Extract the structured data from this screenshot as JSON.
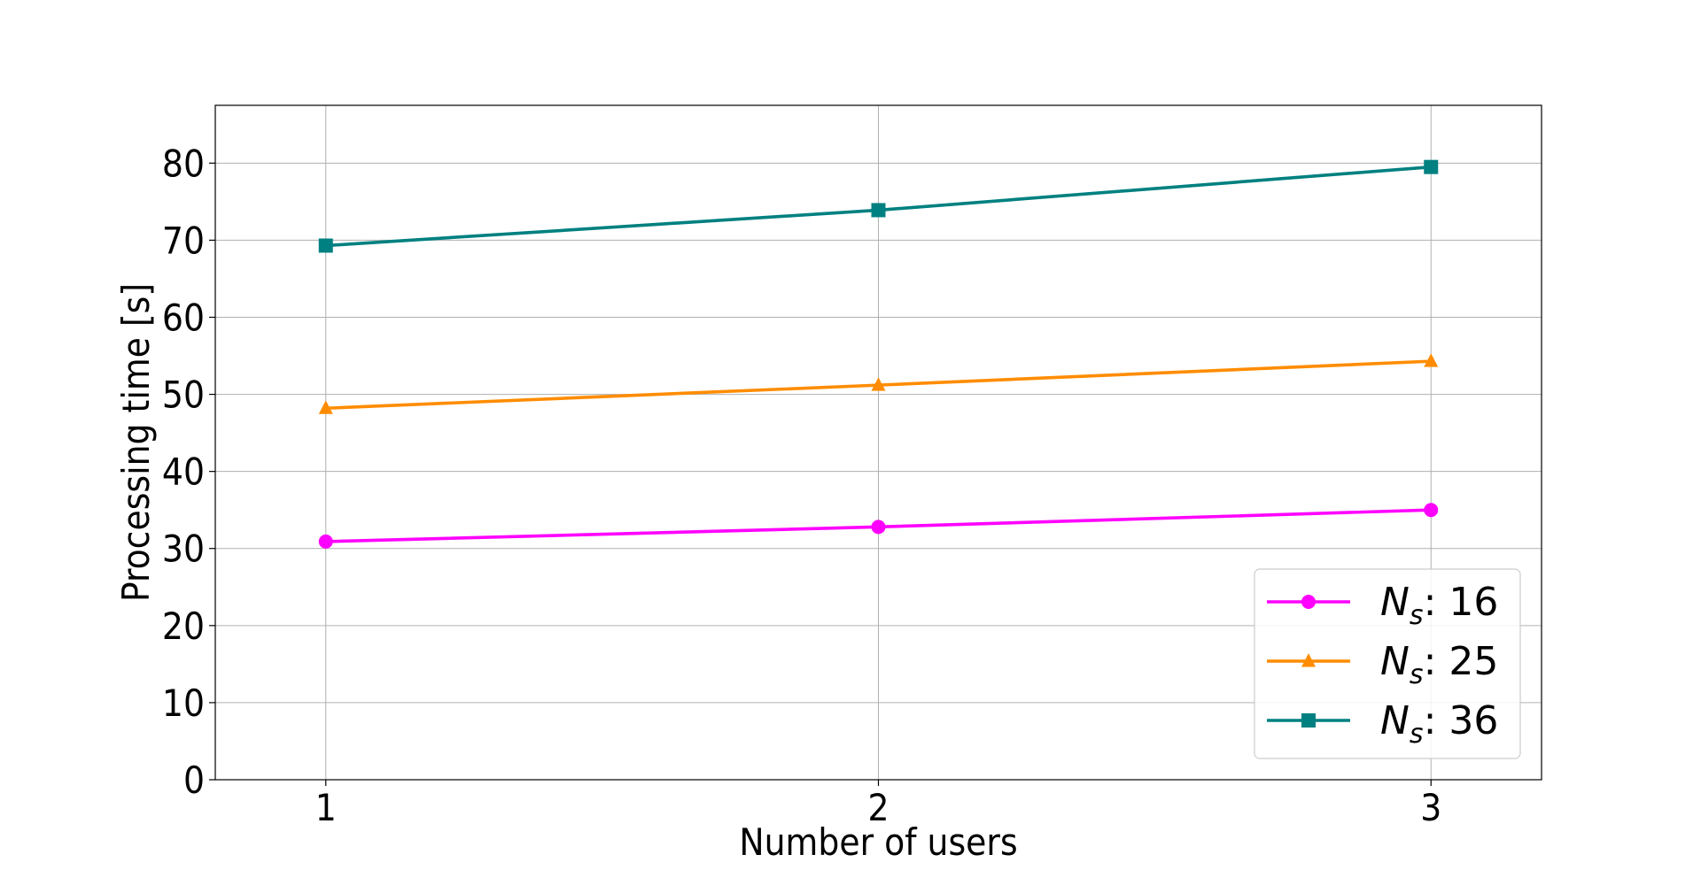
{
  "chart_data": {
    "type": "line",
    "title": "",
    "xlabel": "Number of users",
    "ylabel": "Processing time [s]",
    "x": [
      1,
      2,
      3
    ],
    "xticks": [
      "1",
      "2",
      "3"
    ],
    "xlim": [
      0.8,
      3.2
    ],
    "ylim": [
      0,
      87.5
    ],
    "yticks": [
      "0",
      "10",
      "20",
      "30",
      "40",
      "50",
      "60",
      "70",
      "80"
    ],
    "grid": true,
    "legend_position": "bottom-right",
    "series": [
      {
        "name": "N",
        "subscript": "s",
        "suffix": ": 16",
        "values": [
          30.9,
          32.8,
          35.0
        ],
        "color": "#ff00ff",
        "marker": "circle"
      },
      {
        "name": "N",
        "subscript": "s",
        "suffix": ": 25",
        "values": [
          48.2,
          51.2,
          54.3
        ],
        "color": "#ff8c00",
        "marker": "triangle"
      },
      {
        "name": "N",
        "subscript": "s",
        "suffix": ": 36",
        "values": [
          69.3,
          73.9,
          79.5
        ],
        "color": "#008080",
        "marker": "square"
      }
    ]
  }
}
